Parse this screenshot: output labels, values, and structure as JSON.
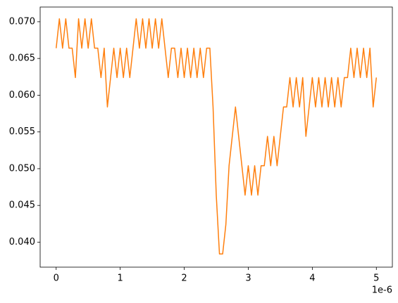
{
  "chart_data": {
    "type": "line",
    "x_offset_label": "1e-6",
    "x": [
      0,
      0.05,
      0.1,
      0.15,
      0.2,
      0.25,
      0.3,
      0.35,
      0.4,
      0.45,
      0.5,
      0.55,
      0.6,
      0.65,
      0.7,
      0.75,
      0.8,
      0.85,
      0.9,
      0.95,
      1,
      1.05,
      1.1,
      1.15,
      1.2,
      1.25,
      1.3,
      1.35,
      1.4,
      1.45,
      1.5,
      1.55,
      1.6,
      1.65,
      1.7,
      1.75,
      1.8,
      1.85,
      1.9,
      1.95,
      2,
      2.05,
      2.1,
      2.15,
      2.2,
      2.25,
      2.3,
      2.35,
      2.4,
      2.45,
      2.5,
      2.55,
      2.6,
      2.65,
      2.7,
      2.75,
      2.8,
      2.85,
      2.9,
      2.95,
      3,
      3.05,
      3.1,
      3.15,
      3.2,
      3.25,
      3.3,
      3.35,
      3.4,
      3.45,
      3.5,
      3.55,
      3.6,
      3.65,
      3.7,
      3.75,
      3.8,
      3.85,
      3.9,
      3.95,
      4,
      4.05,
      4.1,
      4.15,
      4.2,
      4.25,
      4.3,
      4.35,
      4.4,
      4.45,
      4.5,
      4.55,
      4.6,
      4.65,
      4.7,
      4.75,
      4.8,
      4.85,
      4.9,
      4.95,
      5
    ],
    "values": [
      0.0664,
      0.0704,
      0.0664,
      0.0704,
      0.0664,
      0.0664,
      0.0624,
      0.0704,
      0.0664,
      0.0704,
      0.0664,
      0.0704,
      0.0664,
      0.0664,
      0.0624,
      0.0664,
      0.0584,
      0.0624,
      0.0664,
      0.0624,
      0.0664,
      0.0624,
      0.0664,
      0.0624,
      0.0664,
      0.0704,
      0.0664,
      0.0704,
      0.0664,
      0.0704,
      0.0664,
      0.0704,
      0.0664,
      0.0704,
      0.0664,
      0.0624,
      0.0664,
      0.0664,
      0.0624,
      0.0664,
      0.0624,
      0.0664,
      0.0624,
      0.0664,
      0.0624,
      0.0664,
      0.0624,
      0.0664,
      0.0664,
      0.0584,
      0.0464,
      0.0384,
      0.0384,
      0.0424,
      0.0504,
      0.0544,
      0.0584,
      0.0544,
      0.0504,
      0.0464,
      0.0504,
      0.0464,
      0.0504,
      0.0464,
      0.0504,
      0.0504,
      0.0544,
      0.0504,
      0.0544,
      0.0504,
      0.0544,
      0.0584,
      0.0584,
      0.0624,
      0.0584,
      0.0624,
      0.0584,
      0.0624,
      0.0544,
      0.0584,
      0.0624,
      0.0584,
      0.0624,
      0.0584,
      0.0624,
      0.0584,
      0.0624,
      0.0584,
      0.0624,
      0.0584,
      0.0624,
      0.0624,
      0.0664,
      0.0624,
      0.0664,
      0.0624,
      0.0664,
      0.0624,
      0.0664,
      0.0584,
      0.0624
    ],
    "color": "#ff7f0e",
    "xlim": [
      -0.25,
      5.25
    ],
    "xticks": [
      0,
      1,
      2,
      3,
      4,
      5
    ],
    "ylim": [
      0.0366,
      0.072
    ],
    "yticks": [
      {
        "value": 0.04,
        "label": "0.040"
      },
      {
        "value": 0.045,
        "label": "0.045"
      },
      {
        "value": 0.05,
        "label": "0.050"
      },
      {
        "value": 0.055,
        "label": "0.055"
      },
      {
        "value": 0.06,
        "label": "0.060"
      },
      {
        "value": 0.065,
        "label": "0.065"
      },
      {
        "value": 0.07,
        "label": "0.070"
      }
    ]
  }
}
